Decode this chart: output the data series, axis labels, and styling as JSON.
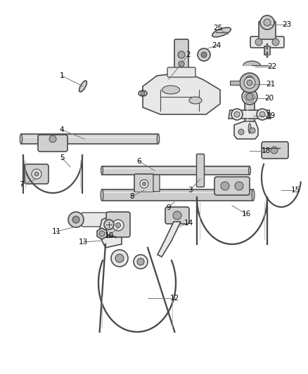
{
  "background_color": "#ffffff",
  "line_color": "#4a4a4a",
  "label_color": "#000000",
  "lw": 1.2,
  "fig_w": 4.38,
  "fig_h": 5.33,
  "dpi": 100
}
